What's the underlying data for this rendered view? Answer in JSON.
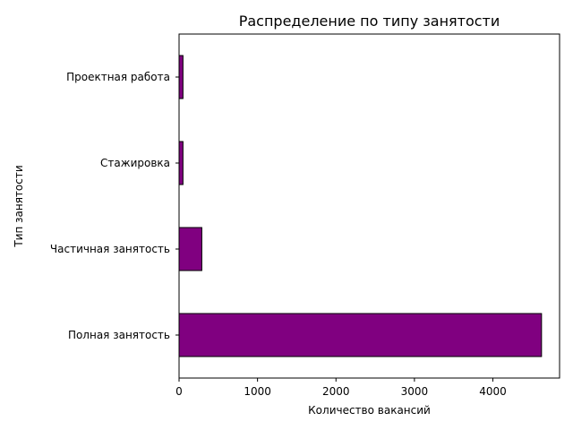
{
  "chart_data": {
    "type": "bar",
    "orientation": "horizontal",
    "title": "Распределение по типу занятости",
    "xlabel": "Количество вакансий",
    "ylabel": "Тип занятости",
    "categories": [
      "Полная занятость",
      "Частичная занятость",
      "Стажировка",
      "Проектная работа"
    ],
    "values": [
      4620,
      290,
      50,
      50
    ],
    "xlim": [
      0,
      4850
    ],
    "xticks": [
      0,
      1000,
      2000,
      3000,
      4000
    ],
    "grid": false,
    "legend": "none",
    "bar_color": "#800080",
    "edge_color": "#000000"
  }
}
